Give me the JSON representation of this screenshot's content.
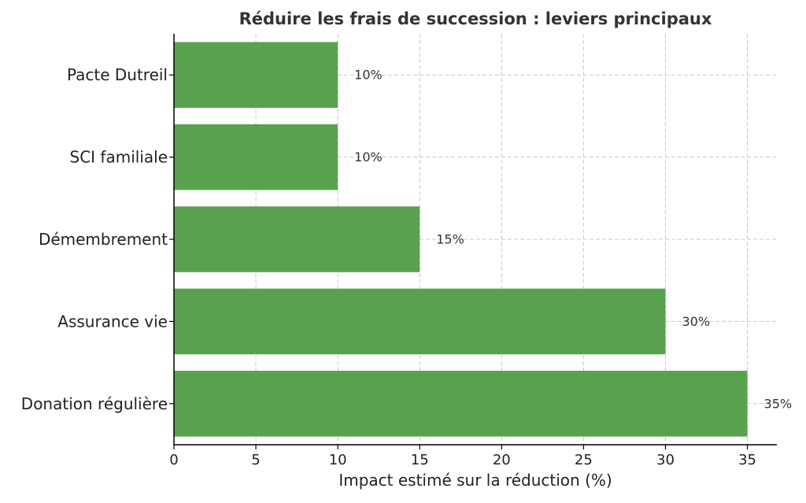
{
  "chart_data": {
    "type": "bar",
    "orientation": "horizontal",
    "title": "Réduire les frais de succession : leviers principaux",
    "xlabel": "Impact estimé sur la réduction (%)",
    "ylabel": "",
    "categories": [
      "Pacte Dutreil",
      "SCI familiale",
      "Démembrement",
      "Assurance vie",
      "Donation régulière"
    ],
    "values": [
      10,
      10,
      15,
      30,
      35
    ],
    "data_labels": [
      "10%",
      "10%",
      "15%",
      "30%",
      "35%"
    ],
    "xlim": [
      0,
      36.8
    ],
    "x_ticks": [
      0,
      5,
      10,
      15,
      20,
      25,
      30,
      35
    ],
    "x_tick_labels": [
      "0",
      "5",
      "10",
      "15",
      "20",
      "25",
      "30",
      "35"
    ],
    "grid": true,
    "bar_color": "#59a14f",
    "grid_color": "#c8c8c8"
  }
}
